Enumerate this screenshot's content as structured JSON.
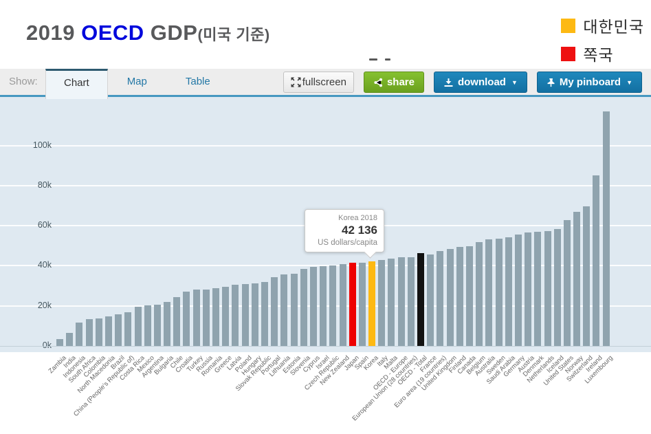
{
  "header": {
    "title": {
      "year": "2019 ",
      "brand": "OECD",
      "rest": " GDP",
      "suffix": "(미국 기준)"
    },
    "legend": [
      {
        "label": "대한민국",
        "color": "#FDB913"
      },
      {
        "label": "쪽국",
        "color": "#EE1111"
      }
    ]
  },
  "toolbar": {
    "show_label": "Show:",
    "tabs": [
      {
        "label": "Chart",
        "active": true
      },
      {
        "label": "Map",
        "active": false
      },
      {
        "label": "Table",
        "active": false
      }
    ],
    "buttons": {
      "fullscreen": {
        "label": "fullscreen"
      },
      "share": {
        "label": "share"
      },
      "download": {
        "label": "download",
        "caret": "▼"
      },
      "pinboard": {
        "label": "My pinboard",
        "caret": "▼"
      }
    }
  },
  "colors": {
    "accent_blue_button": "#1879AE",
    "share_green": "#74AF27",
    "toolbar_line_blue": "#4698C0",
    "chart_background": "#DFE9F1",
    "bar_default": "#8FA3AE",
    "bar_japan_red": "#EE0000",
    "bar_korea_yellow": "#FDB913",
    "bar_oecd_black": "#121212"
  },
  "chart_data": {
    "type": "bar",
    "unit": "US dollars/capita",
    "ylabel": "US dollars/capita",
    "ylim": [
      0,
      125000
    ],
    "grid": true,
    "yticks": [
      "0k",
      "20k",
      "40k",
      "60k",
      "80k",
      "100k"
    ],
    "ytick_values": [
      0,
      20000,
      40000,
      60000,
      80000,
      100000
    ],
    "categories": [
      "Zambia",
      "India",
      "Indonesia",
      "South Africa",
      "Colombia",
      "North Macedonia",
      "Brazil",
      "China (People's Republic of)",
      "Costa Rica",
      "Mexico",
      "Argentina",
      "Bulgaria",
      "Chile",
      "Croatia",
      "Turkey",
      "Russia",
      "Romania",
      "Greece",
      "Latvia",
      "Poland",
      "Hungary",
      "Slovak Republic",
      "Portugal",
      "Lithuania",
      "Estonia",
      "Slovenia",
      "Cyprus",
      "Israel",
      "Czech Republic",
      "New Zealand",
      "Japan",
      "Spain",
      "Korea",
      "Italy",
      "Malta",
      "OECD - Europe",
      "European Union (28 countries)",
      "OECD - Total",
      "France",
      "Euro area (19 countries)",
      "United Kingdom",
      "Finland",
      "Canada",
      "Belgium",
      "Australia",
      "Sweden",
      "Saudi Arabia",
      "Germany",
      "Austria",
      "Denmark",
      "Netherlands",
      "Iceland",
      "United States",
      "Norway",
      "Switzerland",
      "Ireland",
      "Luxembourg"
    ],
    "values": [
      3500,
      6500,
      11700,
      13400,
      13800,
      14800,
      15800,
      16800,
      19700,
      20300,
      20600,
      22000,
      24400,
      27000,
      28100,
      28200,
      28800,
      29600,
      30600,
      31000,
      31200,
      31900,
      34300,
      35700,
      36000,
      38500,
      39300,
      39900,
      40300,
      40800,
      41600,
      41400,
      42136,
      43000,
      43600,
      44100,
      44300,
      46200,
      45600,
      47300,
      48300,
      49400,
      49600,
      51900,
      53300,
      53600,
      54200,
      55600,
      56500,
      56800,
      57400,
      58200,
      62800,
      67000,
      69600,
      85200,
      117100
    ],
    "bar_color_default": "#8FA3AE",
    "highlights": {
      "Japan": "#EE0000",
      "Korea": "#FDB913",
      "OECD - Total": "#121212"
    },
    "tooltip": {
      "title": "Korea 2018",
      "value": "42 136",
      "unit": "US dollars/capita",
      "target": "Korea"
    }
  }
}
